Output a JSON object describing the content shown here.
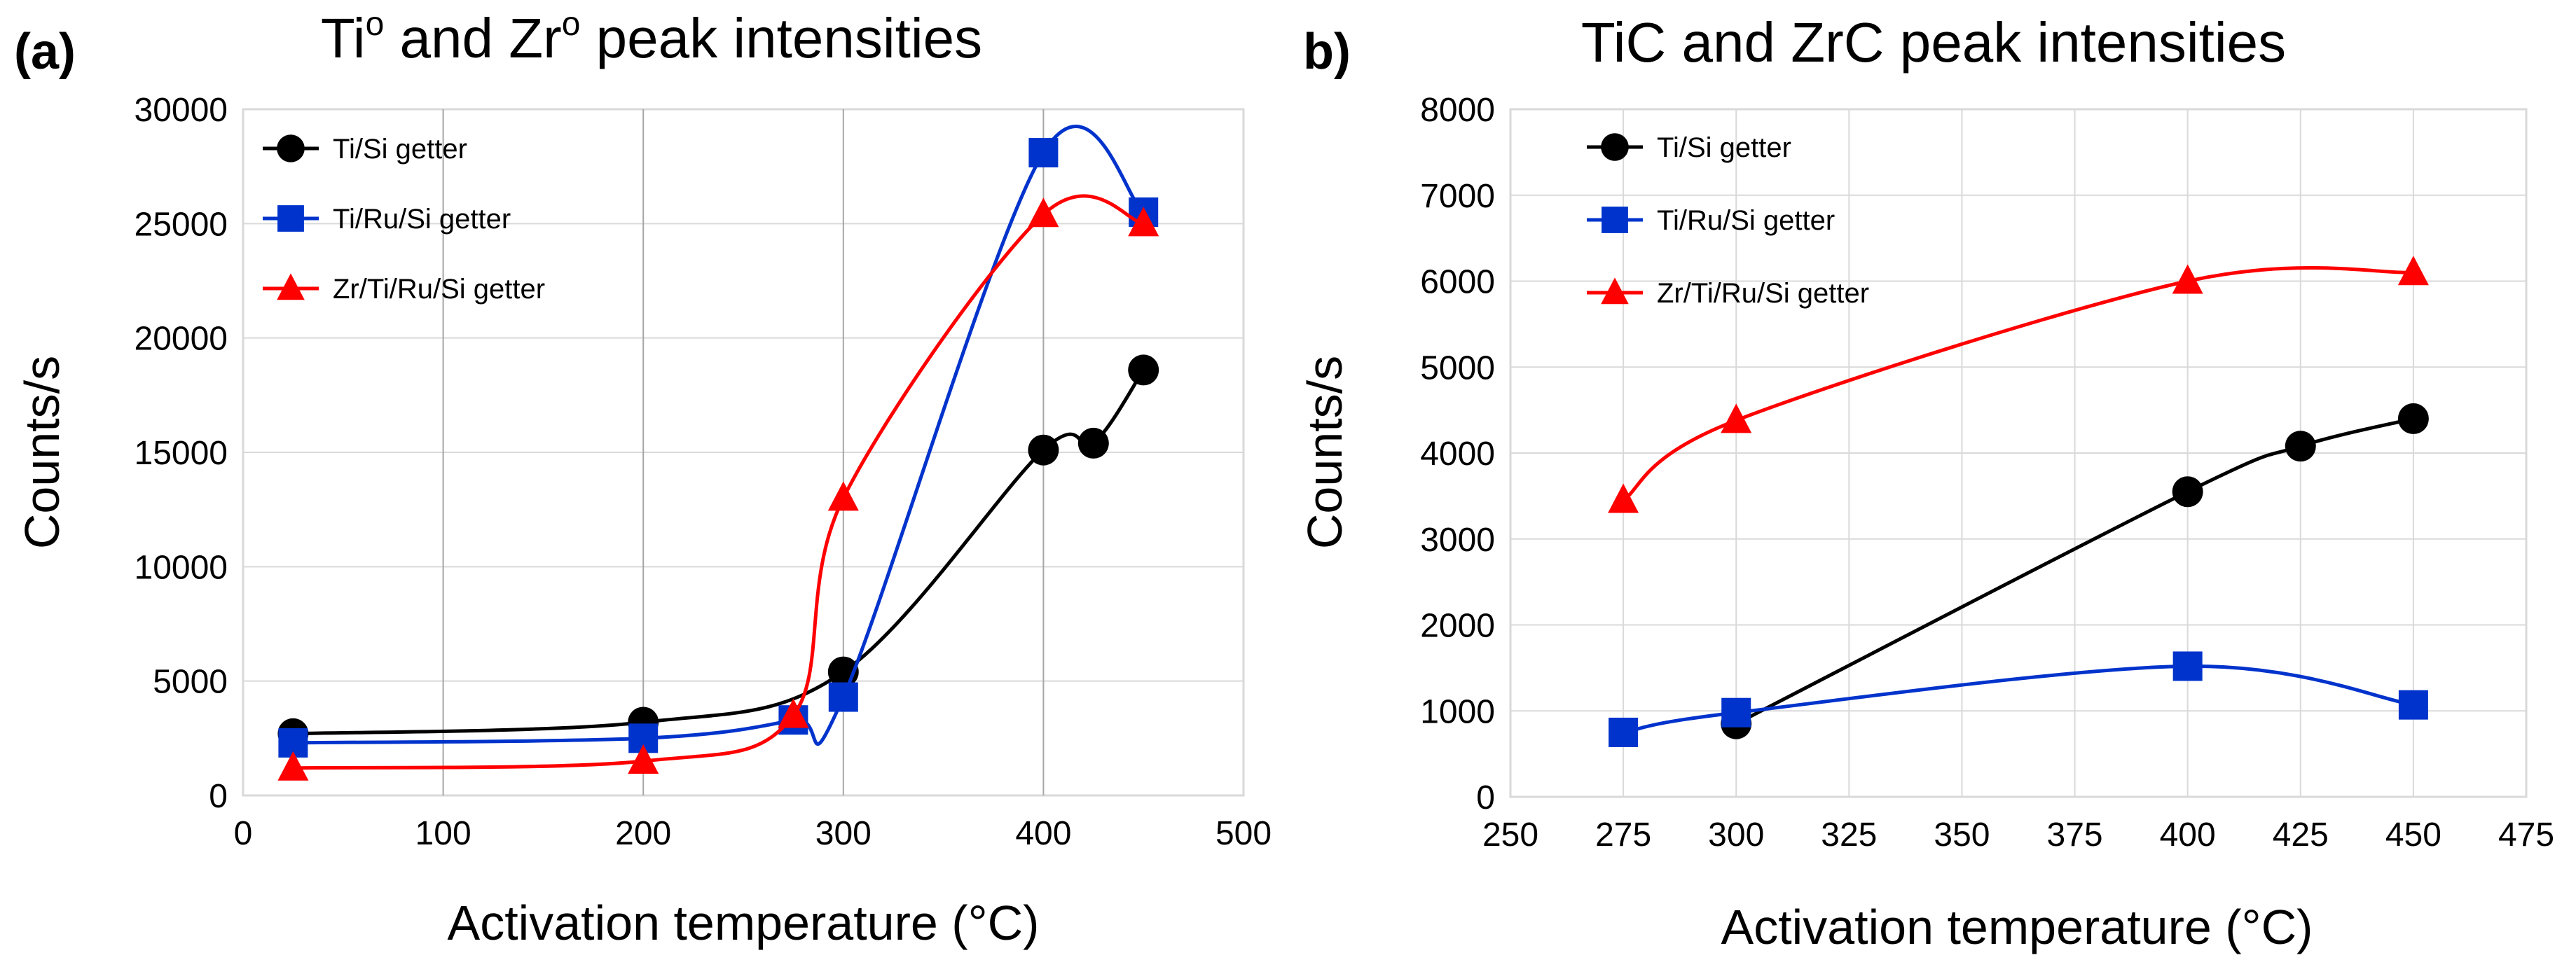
{
  "colors": {
    "black": "#000000",
    "blue": "#0033cc",
    "red": "#ff0000"
  },
  "chart_data": [
    {
      "panel": "(a)",
      "type": "line",
      "title_main": "Ti",
      "title_sup": "o",
      "title_mid": " and Zr",
      "title_sup2": "o",
      "title_end": " peak intensities",
      "xlabel": "Activation temperature (°C)",
      "ylabel": "Counts/s",
      "xlim": [
        0,
        500
      ],
      "ylim": [
        0,
        30000
      ],
      "xticks": [
        0,
        100,
        200,
        300,
        400,
        500
      ],
      "yticks": [
        0,
        5000,
        10000,
        15000,
        20000,
        25000,
        30000
      ],
      "grid": "horizontal and vertical",
      "legend_placement": "top-left",
      "series": [
        {
          "name": "Ti/Si getter",
          "color": "#000000",
          "marker": "circle",
          "x": [
            25,
            200,
            300,
            400,
            425,
            450
          ],
          "y": [
            2700,
            3200,
            5400,
            15100,
            15400,
            18600
          ]
        },
        {
          "name": "Ti/Ru/Si getter",
          "color": "#0033cc",
          "marker": "square",
          "x": [
            25,
            200,
            275,
            300,
            400,
            450
          ],
          "y": [
            2300,
            2500,
            3300,
            4300,
            28100,
            25500
          ]
        },
        {
          "name": "Zr/Ti/Ru/Si getter",
          "color": "#ff0000",
          "marker": "triangle",
          "x": [
            25,
            200,
            275,
            300,
            400,
            450
          ],
          "y": [
            1200,
            1500,
            3500,
            13000,
            25400,
            25000
          ]
        }
      ]
    },
    {
      "panel": "b)",
      "type": "line",
      "title": "TiC and ZrC peak intensities",
      "xlabel": "Activation temperature (°C)",
      "ylabel": "Counts/s",
      "xlim": [
        250,
        475
      ],
      "ylim": [
        0,
        8000
      ],
      "xticks": [
        250,
        275,
        300,
        325,
        350,
        375,
        400,
        425,
        450,
        475
      ],
      "yticks": [
        0,
        1000,
        2000,
        3000,
        4000,
        5000,
        6000,
        7000,
        8000
      ],
      "grid": "horizontal and vertical",
      "legend_placement": "top-left",
      "series": [
        {
          "name": "Ti/Si getter",
          "color": "#000000",
          "marker": "circle",
          "x": [
            300,
            400,
            425,
            450
          ],
          "y": [
            850,
            3550,
            4080,
            4400
          ]
        },
        {
          "name": "Ti/Ru/Si getter",
          "color": "#0033cc",
          "marker": "square",
          "x": [
            275,
            300,
            400,
            450
          ],
          "y": [
            750,
            980,
            1520,
            1070
          ]
        },
        {
          "name": "Zr/Ti/Ru/Si getter",
          "color": "#ff0000",
          "marker": "triangle",
          "x": [
            275,
            300,
            400,
            450
          ],
          "y": [
            3450,
            4380,
            6000,
            6100
          ]
        }
      ]
    }
  ]
}
